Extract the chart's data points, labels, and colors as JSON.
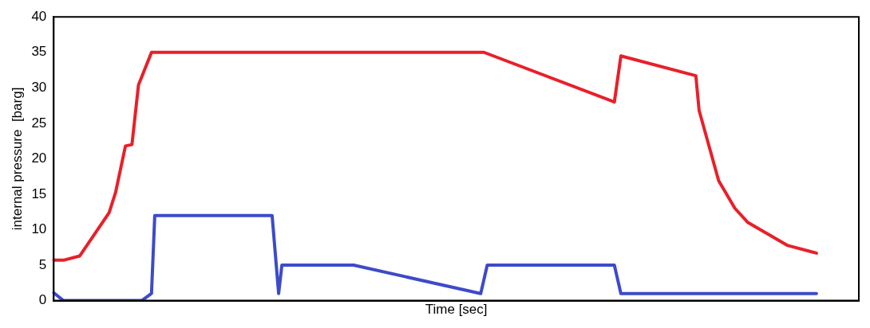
{
  "chart_data": {
    "type": "line",
    "xlabel": "Time [sec]",
    "ylabel": "internal pressure  [barg]",
    "ylim": [
      0,
      40
    ],
    "yticks": [
      0,
      5,
      10,
      15,
      20,
      25,
      30,
      35,
      40
    ],
    "grid": false,
    "legend": false,
    "tick_labels": "y",
    "marker": "none",
    "line_style": "solid",
    "categories": [
      null,
      null,
      null,
      null,
      null,
      null,
      null,
      null,
      null,
      null,
      null,
      null,
      null,
      null,
      null,
      null,
      null,
      null,
      null,
      null,
      null,
      null,
      null,
      null,
      null,
      null,
      null,
      null,
      null,
      null,
      null,
      null,
      null,
      null,
      null,
      null,
      null,
      null,
      null,
      null,
      null,
      null,
      null,
      null,
      null,
      null,
      null,
      null,
      null,
      null,
      null,
      null,
      null,
      null,
      null,
      null,
      null,
      null,
      null,
      null,
      null,
      null,
      null,
      null,
      null,
      null,
      null,
      null,
      null,
      null,
      null,
      null,
      null,
      null,
      null,
      null,
      null,
      null,
      null,
      null,
      null,
      null,
      null,
      null,
      null,
      null,
      null,
      null,
      null,
      null,
      null,
      null,
      null,
      null,
      null,
      null,
      null,
      null,
      null,
      null,
      null,
      null,
      null,
      null,
      null,
      null,
      null,
      null,
      null,
      null,
      null,
      null,
      null,
      null,
      null,
      null,
      null,
      null,
      null,
      null,
      null,
      null,
      null,
      null,
      null,
      null,
      null,
      null,
      null,
      null,
      null,
      null,
      null,
      null,
      null,
      null,
      null,
      null,
      null,
      null,
      null,
      null,
      null,
      null,
      null,
      null,
      null,
      null,
      null,
      null,
      null,
      null,
      null,
      null,
      null,
      null,
      null,
      null,
      null,
      null,
      null,
      null,
      null,
      null,
      null,
      null,
      null,
      null,
      null,
      null,
      null,
      null,
      null,
      null,
      null,
      null,
      null,
      null,
      null,
      null,
      null,
      null,
      null,
      null,
      null,
      null,
      null,
      null,
      null,
      null,
      null,
      null,
      null,
      null,
      null,
      null,
      null,
      null,
      null,
      null,
      null,
      null,
      null,
      null,
      null,
      null,
      null,
      null,
      null,
      null,
      null,
      null,
      null,
      null,
      null,
      null,
      null,
      null,
      null,
      null,
      null,
      null,
      null,
      null,
      null,
      null,
      null,
      null,
      null,
      null,
      null,
      null,
      null,
      null,
      null,
      null,
      null,
      null,
      null,
      null,
      null,
      null,
      null,
      null,
      null,
      null,
      null,
      null
    ],
    "series": [
      {
        "color": "#e8202a",
        "values": [
          5.7,
          null,
          null,
          5.7,
          null,
          null,
          null,
          null,
          6.3,
          null,
          null,
          null,
          null,
          null,
          null,
          null,
          null,
          12.4,
          null,
          15.3,
          null,
          null,
          21.8,
          null,
          22,
          null,
          30.4,
          null,
          null,
          null,
          35,
          null,
          null,
          null,
          null,
          null,
          null,
          null,
          null,
          null,
          null,
          null,
          null,
          null,
          null,
          null,
          null,
          null,
          null,
          null,
          null,
          null,
          null,
          null,
          null,
          null,
          null,
          null,
          null,
          null,
          null,
          null,
          null,
          null,
          null,
          null,
          null,
          null,
          null,
          null,
          null,
          null,
          null,
          null,
          null,
          null,
          null,
          null,
          null,
          null,
          null,
          null,
          null,
          null,
          null,
          null,
          null,
          null,
          null,
          null,
          null,
          null,
          null,
          null,
          null,
          null,
          null,
          null,
          null,
          null,
          null,
          null,
          null,
          null,
          null,
          null,
          null,
          null,
          null,
          null,
          null,
          null,
          null,
          null,
          null,
          null,
          null,
          null,
          null,
          null,
          null,
          null,
          null,
          null,
          null,
          null,
          null,
          null,
          null,
          null,
          null,
          null,
          35,
          null,
          null,
          null,
          null,
          null,
          null,
          null,
          null,
          null,
          null,
          null,
          null,
          null,
          null,
          null,
          null,
          null,
          null,
          null,
          null,
          null,
          null,
          null,
          null,
          null,
          null,
          null,
          null,
          null,
          null,
          null,
          null,
          null,
          null,
          null,
          null,
          null,
          null,
          null,
          28,
          null,
          34.5,
          null,
          null,
          null,
          null,
          null,
          null,
          null,
          null,
          null,
          null,
          null,
          null,
          null,
          null,
          null,
          null,
          null,
          null,
          null,
          null,
          null,
          null,
          31.7,
          26.8,
          null,
          null,
          null,
          null,
          null,
          16.9,
          null,
          null,
          null,
          null,
          13,
          null,
          null,
          null,
          11,
          null,
          null,
          null,
          null,
          null,
          null,
          null,
          null,
          null,
          null,
          null,
          7.8,
          null,
          null,
          null,
          null,
          null,
          null,
          null,
          null,
          6.7,
          null,
          null,
          null,
          null,
          null,
          null,
          null,
          null,
          null,
          null,
          null,
          null,
          null
        ]
      },
      {
        "color": "#3d4bc8",
        "values": [
          1.1,
          null,
          null,
          0,
          null,
          null,
          null,
          null,
          null,
          null,
          null,
          null,
          null,
          null,
          null,
          null,
          null,
          null,
          null,
          null,
          null,
          null,
          null,
          null,
          null,
          null,
          null,
          0,
          null,
          null,
          1,
          12,
          null,
          null,
          null,
          null,
          null,
          null,
          null,
          null,
          null,
          null,
          null,
          null,
          null,
          null,
          null,
          null,
          null,
          null,
          null,
          null,
          null,
          null,
          null,
          null,
          null,
          null,
          null,
          null,
          null,
          null,
          null,
          null,
          null,
          null,
          null,
          12,
          null,
          1,
          5,
          null,
          null,
          null,
          null,
          null,
          null,
          null,
          null,
          null,
          null,
          null,
          null,
          null,
          null,
          null,
          null,
          null,
          null,
          null,
          null,
          null,
          5,
          null,
          null,
          null,
          null,
          null,
          null,
          null,
          null,
          null,
          null,
          null,
          null,
          null,
          null,
          null,
          null,
          null,
          null,
          null,
          null,
          null,
          null,
          null,
          null,
          null,
          null,
          null,
          null,
          null,
          null,
          null,
          null,
          null,
          null,
          null,
          null,
          null,
          null,
          1,
          null,
          5,
          null,
          null,
          null,
          null,
          null,
          null,
          null,
          null,
          null,
          null,
          null,
          null,
          null,
          null,
          null,
          null,
          null,
          null,
          null,
          null,
          null,
          null,
          null,
          null,
          null,
          null,
          null,
          null,
          null,
          null,
          null,
          null,
          null,
          null,
          null,
          null,
          null,
          null,
          5,
          null,
          1,
          null,
          null,
          null,
          null,
          null,
          null,
          null,
          null,
          null,
          null,
          null,
          null,
          null,
          null,
          null,
          null,
          null,
          null,
          null,
          null,
          null,
          null,
          null,
          null,
          null,
          null,
          null,
          null,
          null,
          null,
          null,
          null,
          null,
          null,
          null,
          null,
          null,
          null,
          null,
          null,
          null,
          null,
          null,
          null,
          null,
          null,
          null,
          null,
          null,
          null,
          null,
          null,
          null,
          null,
          null,
          null,
          null,
          null,
          null,
          1,
          null,
          null,
          null,
          null,
          null,
          null,
          null,
          null,
          null,
          null,
          null,
          null,
          null
        ]
      }
    ]
  }
}
